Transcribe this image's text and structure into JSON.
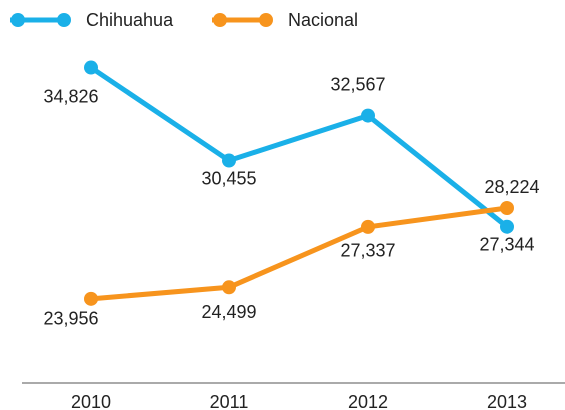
{
  "chart_data": {
    "type": "line",
    "categories": [
      "2010",
      "2011",
      "2012",
      "2013"
    ],
    "series": [
      {
        "name": "Chihuahua",
        "color": "#1ab0e8",
        "values": [
          34826,
          30455,
          32567,
          27344
        ],
        "value_labels": [
          "34,826",
          "30,455",
          "32,567",
          "27,344"
        ]
      },
      {
        "name": "Nacional",
        "color": "#f7941d",
        "values": [
          23956,
          24499,
          27337,
          28224
        ],
        "value_labels": [
          "23,956",
          "24,499",
          "27,337",
          "28,224"
        ]
      }
    ],
    "ylim": [
      20000,
      38000
    ]
  }
}
